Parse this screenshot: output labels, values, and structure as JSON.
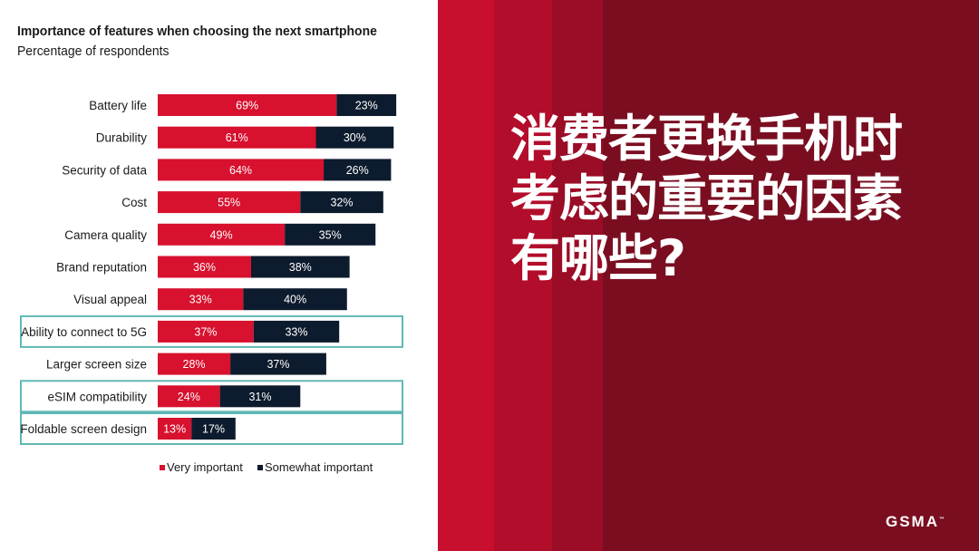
{
  "chart_data": {
    "type": "bar",
    "stacked": true,
    "orientation": "horizontal",
    "title": "Importance of features when choosing the next smartphone",
    "subtitle": "Percentage of respondents",
    "categories": [
      "Battery life",
      "Durability",
      "Security of data",
      "Cost",
      "Camera quality",
      "Brand reputation",
      "Visual appeal",
      "Ability to connect to 5G",
      "Larger screen size",
      "eSIM compatibility",
      "Foldable screen design"
    ],
    "series": [
      {
        "name": "Very important",
        "color": "#d7112e",
        "values": [
          69,
          61,
          64,
          55,
          49,
          36,
          33,
          37,
          28,
          24,
          13
        ]
      },
      {
        "name": "Somewhat important",
        "color": "#0d1b2e",
        "values": [
          23,
          30,
          26,
          32,
          35,
          38,
          40,
          33,
          37,
          31,
          17
        ]
      }
    ],
    "value_suffix": "%",
    "highlighted_categories": [
      "Ability to connect to 5G",
      "eSIM compatibility",
      "Foldable screen design"
    ],
    "highlight_color": "#5fb8b4",
    "legend_position": "bottom"
  },
  "headline": {
    "lines": [
      "消费者更换手机时",
      "考虑的重要的因素",
      "有哪些?"
    ]
  },
  "logo": {
    "text": "GSMA",
    "mark": "™"
  }
}
